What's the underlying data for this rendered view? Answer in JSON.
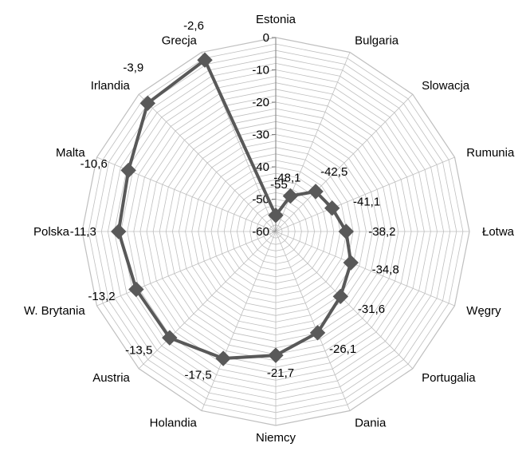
{
  "chart_data": {
    "type": "radar",
    "categories": [
      "Estonia",
      "Bulgaria",
      "Slowacja",
      "Rumunia",
      "Łotwa",
      "Węgry",
      "Portugalia",
      "Dania",
      "Niemcy",
      "Holandia",
      "Austria",
      "W. Brytania",
      "Polska",
      "Malta",
      "Irlandia",
      "Grecja"
    ],
    "values": [
      -55,
      -48.1,
      -42.5,
      -41.1,
      -38.2,
      -34.8,
      -31.6,
      -26.1,
      -21.7,
      -17.5,
      -13.5,
      -13.2,
      -11.3,
      -10.6,
      -3.9,
      -2.6
    ],
    "value_labels": [
      "-55",
      "-48,1",
      "-42,5",
      "-41,1",
      "-38,2",
      "-34,8",
      "-31,6",
      "-26,1",
      "-21,7",
      "-17,5",
      "-13,5",
      "-13,2",
      "-11,3",
      "-10,6",
      "-3,9",
      "-2,6"
    ],
    "rlim": [
      -60,
      0
    ],
    "ticks": [
      -60,
      -50,
      -40,
      -30,
      -20,
      -10,
      0
    ],
    "tick_labels": [
      "-60",
      "-50",
      "-40",
      "-30",
      "-20",
      "-10",
      "0"
    ],
    "grid": true,
    "legend": "none",
    "series_color": "#595959",
    "grid_color": "#bfbfbf",
    "title": "",
    "xlabel": "",
    "ylabel": ""
  }
}
